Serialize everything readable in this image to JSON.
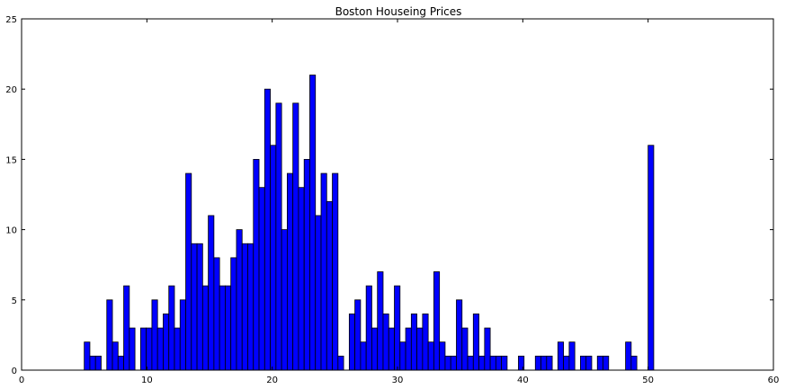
{
  "chart_data": {
    "type": "bar",
    "title": "Boston Houseing Prices",
    "xlabel": "",
    "ylabel": "",
    "xlim": [
      0,
      60
    ],
    "ylim": [
      0,
      25
    ],
    "xticks": [
      0,
      10,
      20,
      30,
      40,
      50,
      60
    ],
    "yticks": [
      0,
      5,
      10,
      15,
      20,
      25
    ],
    "grid": false,
    "bar_color": "#0000ff",
    "bin_start": 5.0,
    "bin_width": 0.45,
    "counts": [
      2,
      1,
      1,
      0,
      5,
      2,
      1,
      6,
      3,
      0,
      3,
      3,
      5,
      3,
      4,
      6,
      3,
      5,
      14,
      9,
      9,
      6,
      11,
      8,
      6,
      6,
      8,
      10,
      9,
      9,
      15,
      13,
      20,
      16,
      19,
      10,
      14,
      19,
      13,
      15,
      21,
      11,
      14,
      12,
      14,
      1,
      0,
      4,
      5,
      2,
      6,
      3,
      7,
      4,
      3,
      6,
      2,
      3,
      4,
      3,
      4,
      2,
      7,
      2,
      1,
      1,
      5,
      3,
      1,
      4,
      1,
      3,
      1,
      1,
      1,
      0,
      0,
      1,
      0,
      0,
      1,
      1,
      1,
      0,
      2,
      1,
      2,
      0,
      1,
      1,
      0,
      1,
      1,
      0,
      0,
      0,
      2,
      1,
      0,
      0,
      16
    ]
  }
}
